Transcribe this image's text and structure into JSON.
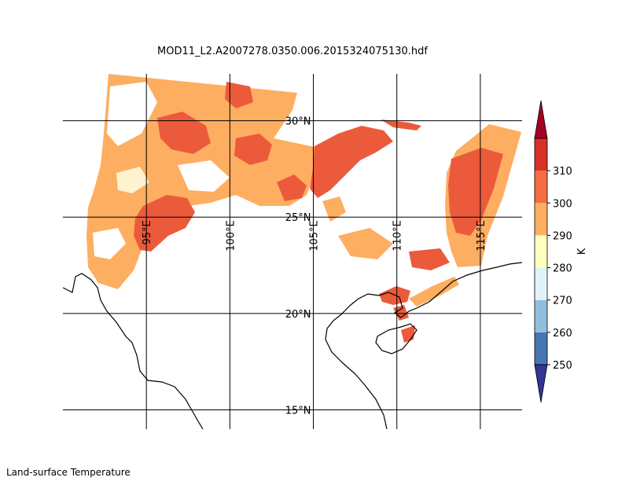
{
  "title": "MOD11_L2.A2007278.0350.006.2015324075130.hdf",
  "footer": "Land-surface Temperature",
  "map": {
    "lon_range": [
      90,
      117.5
    ],
    "lat_range": [
      14,
      33
    ],
    "meridians": [
      95,
      100,
      105,
      110,
      115
    ],
    "parallels": [
      15,
      20,
      25,
      30
    ],
    "meridian_labels": [
      "95°E",
      "100°E",
      "105°E",
      "110°E",
      "115°E"
    ],
    "parallel_labels": [
      "15°N",
      "20°N",
      "25°N",
      "30°N"
    ]
  },
  "colorbar": {
    "unit": "K",
    "ticks": [
      "250",
      "260",
      "270",
      "280",
      "290",
      "300",
      "310"
    ],
    "levels": [
      250,
      260,
      270,
      280,
      290,
      300,
      310
    ],
    "colors": [
      "#4575b4",
      "#91bfdb",
      "#e0f3f8",
      "#ffffbf",
      "#fdae61",
      "#f46d43",
      "#d73027"
    ],
    "under_color": "#313695",
    "over_color": "#a50026"
  },
  "palette": {
    "k295": "#fdae61",
    "k305": "#ec5a3c",
    "k285": "#fee08b"
  }
}
